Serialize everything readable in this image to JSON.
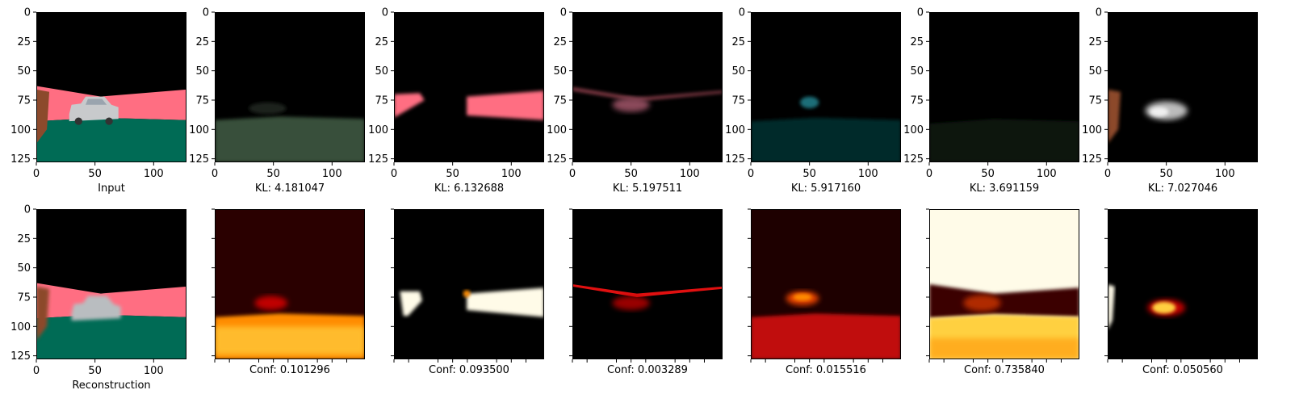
{
  "chart_data": [
    {
      "type": "image",
      "panel": "top-1",
      "caption": "Input",
      "content": "rgb-scene",
      "xlim": [
        0,
        128
      ],
      "ylim": [
        128,
        0
      ],
      "x_ticks": [
        "0",
        "50",
        "100"
      ],
      "y_ticks": [
        "0",
        "25",
        "50",
        "75",
        "100",
        "125"
      ]
    },
    {
      "type": "image",
      "panel": "top-2",
      "caption": "KL: 4.181047",
      "kl": 4.181047,
      "content": "slot-ground",
      "xlim": [
        0,
        128
      ],
      "ylim": [
        128,
        0
      ],
      "x_ticks": [
        "0",
        "50",
        "100"
      ],
      "y_ticks": [
        "0",
        "25",
        "50",
        "75",
        "100",
        "125"
      ]
    },
    {
      "type": "image",
      "panel": "top-3",
      "caption": "KL: 6.132688",
      "kl": 6.132688,
      "content": "slot-wall",
      "xlim": [
        0,
        128
      ],
      "ylim": [
        128,
        0
      ],
      "x_ticks": [
        "0",
        "50",
        "100"
      ],
      "y_ticks": [
        "0",
        "25",
        "50",
        "75",
        "100",
        "125"
      ]
    },
    {
      "type": "image",
      "panel": "top-4",
      "caption": "KL: 5.197511",
      "kl": 5.197511,
      "content": "slot-edge",
      "xlim": [
        0,
        128
      ],
      "ylim": [
        128,
        0
      ],
      "x_ticks": [
        "0",
        "50",
        "100"
      ],
      "y_ticks": [
        "0",
        "25",
        "50",
        "75",
        "100",
        "125"
      ]
    },
    {
      "type": "image",
      "panel": "top-5",
      "caption": "KL: 5.917160",
      "kl": 5.91716,
      "content": "slot-ground-teal",
      "xlim": [
        0,
        128
      ],
      "ylim": [
        128,
        0
      ],
      "x_ticks": [
        "0",
        "50",
        "100"
      ],
      "y_ticks": [
        "0",
        "25",
        "50",
        "75",
        "100",
        "125"
      ]
    },
    {
      "type": "image",
      "panel": "top-6",
      "caption": "KL: 3.691159",
      "kl": 3.691159,
      "content": "slot-faint",
      "xlim": [
        0,
        128
      ],
      "ylim": [
        128,
        0
      ],
      "x_ticks": [
        "0",
        "50",
        "100"
      ],
      "y_ticks": [
        "0",
        "25",
        "50",
        "75",
        "100",
        "125"
      ]
    },
    {
      "type": "image",
      "panel": "top-7",
      "caption": "KL: 7.027046",
      "kl": 7.027046,
      "content": "slot-car",
      "xlim": [
        0,
        128
      ],
      "ylim": [
        128,
        0
      ],
      "x_ticks": [
        "0",
        "50",
        "100"
      ],
      "y_ticks": [
        "0",
        "25",
        "50",
        "75",
        "100",
        "125"
      ]
    },
    {
      "type": "image",
      "panel": "bottom-1",
      "caption": "Reconstruction",
      "content": "rgb-reconstruction",
      "xlim": [
        0,
        128
      ],
      "ylim": [
        128,
        0
      ],
      "x_ticks": [
        "0",
        "50",
        "100"
      ],
      "y_ticks": [
        "0",
        "25",
        "50",
        "75",
        "100",
        "125"
      ]
    },
    {
      "type": "heatmap",
      "panel": "bottom-2",
      "caption": "Conf: 0.101296",
      "conf": 0.101296,
      "colormap": "hot",
      "content": "mask-ground"
    },
    {
      "type": "heatmap",
      "panel": "bottom-3",
      "caption": "Conf: 0.093500",
      "conf": 0.0935,
      "colormap": "hot",
      "content": "mask-wall"
    },
    {
      "type": "heatmap",
      "panel": "bottom-4",
      "caption": "Conf: 0.003289",
      "conf": 0.003289,
      "colormap": "hot",
      "content": "mask-edge"
    },
    {
      "type": "heatmap",
      "panel": "bottom-5",
      "caption": "Conf: 0.015516",
      "conf": 0.015516,
      "colormap": "hot",
      "content": "mask-ground-car"
    },
    {
      "type": "heatmap",
      "panel": "bottom-6",
      "caption": "Conf: 0.735840",
      "conf": 0.73584,
      "colormap": "hot",
      "content": "mask-sky-ground"
    },
    {
      "type": "heatmap",
      "panel": "bottom-7",
      "caption": "Conf: 0.050560",
      "conf": 0.05056,
      "colormap": "hot",
      "content": "mask-car"
    }
  ],
  "colors": {
    "wall_pink": "#ff6e82",
    "ground_green": "#006b55",
    "wall_brown": "#8c4a2c",
    "car_silver": "#c8cacc",
    "background": "#000000",
    "hot_dark": "#3a0000",
    "hot_red": "#c00000",
    "hot_orange": "#ff8c00",
    "hot_yellow": "#ffd040",
    "hot_white": "#fffbe8"
  }
}
